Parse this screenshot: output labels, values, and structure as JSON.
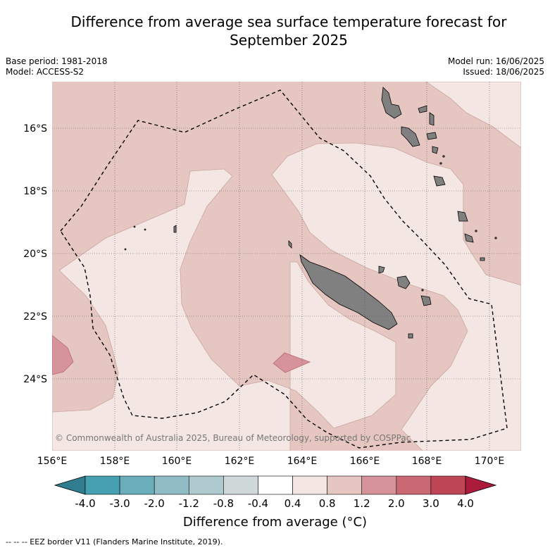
{
  "title": {
    "line1": "Difference from average sea surface temperature forecast for",
    "line2": "September 2025"
  },
  "meta": {
    "base_period": "Base period: 1981-2018",
    "model": "Model: ACCESS-S2",
    "model_run": "Model run: 16/06/2025",
    "issued": "Issued: 18/06/2025"
  },
  "map": {
    "lat_labels": [
      "16°S",
      "18°S",
      "20°S",
      "22°S",
      "24°S"
    ],
    "lon_labels": [
      "156°E",
      "158°E",
      "160°E",
      "162°E",
      "164°E",
      "166°E",
      "168°E",
      "170°E"
    ],
    "copyright": "© Commonwealth of Australia 2025, Bureau of Meteorology, supported by COSPPac",
    "colors": {
      "band_04_08": "#f4e6e3",
      "band_08_12": "#e6c6c1",
      "band_12_20": "#d6939a",
      "land": "#808080"
    }
  },
  "colorbar": {
    "ticks": [
      "-4.0",
      "-3.0",
      "-2.0",
      "-1.2",
      "-0.8",
      "-0.4",
      "0.4",
      "0.8",
      "1.2",
      "2.0",
      "3.0",
      "4.0"
    ],
    "colors": [
      "#2f7d8f",
      "#45a1b2",
      "#6aaebb",
      "#8fbcc5",
      "#aecacf",
      "#d0d9da",
      "#ffffff",
      "#f4e6e3",
      "#e6c6c1",
      "#d6939a",
      "#ca6873",
      "#bf4656",
      "#ab1b3b"
    ],
    "label": "Difference from average (°C)"
  },
  "footnote": "-- -- -- EEZ border V11 (Flanders Marine Institute, 2019)."
}
